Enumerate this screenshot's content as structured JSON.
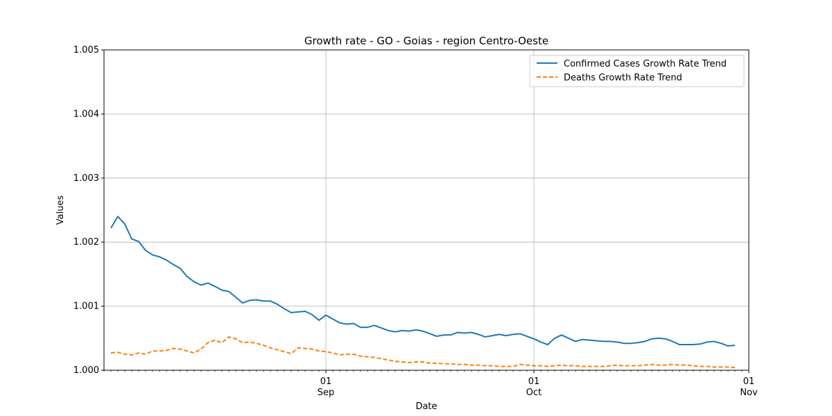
{
  "chart_data": {
    "type": "line",
    "title": "Growth rate - GO - Goias - region Centro-Oeste",
    "xlabel": "Date",
    "ylabel": "Values",
    "xlim": [
      "2020-07-31",
      "2020-11-01"
    ],
    "ylim": [
      1.0,
      1.005
    ],
    "y_ticks": [
      "1.000",
      "1.001",
      "1.002",
      "1.003",
      "1.004",
      "1.005"
    ],
    "x_major_ticks": [
      {
        "date": "2020-09-01",
        "day": "01",
        "month": "Sep"
      },
      {
        "date": "2020-10-01",
        "day": "01",
        "month": "Oct"
      },
      {
        "date": "2020-11-01",
        "day": "01",
        "month": "Nov"
      }
    ],
    "grid": true,
    "legend_position": "top-right",
    "x_start": "2020-08-01",
    "series": [
      {
        "name": "Confirmed Cases Growth Rate Trend",
        "color": "#1f77b4",
        "style": "solid",
        "values": [
          1.00222,
          1.0024,
          1.00228,
          1.00205,
          1.00201,
          1.00187,
          1.0018,
          1.00177,
          1.00172,
          1.00165,
          1.00159,
          1.00146,
          1.00138,
          1.00133,
          1.00136,
          1.00131,
          1.00125,
          1.00123,
          1.00114,
          1.00105,
          1.00109,
          1.0011,
          1.00108,
          1.00108,
          1.00103,
          1.00096,
          1.0009,
          1.00091,
          1.00092,
          1.00087,
          1.00078,
          1.00086,
          1.0008,
          1.00074,
          1.00072,
          1.00073,
          1.00067,
          1.00067,
          1.0007,
          1.00066,
          1.00062,
          1.0006,
          1.00062,
          1.00061,
          1.00063,
          1.00061,
          1.00057,
          1.00053,
          1.00055,
          1.00055,
          1.00059,
          1.00058,
          1.00059,
          1.00056,
          1.00052,
          1.00054,
          1.00056,
          1.00054,
          1.00056,
          1.00057,
          1.00053,
          1.00049,
          1.00044,
          1.0004,
          1.0005,
          1.00055,
          1.0005,
          1.00045,
          1.00048,
          1.00047,
          1.00046,
          1.00045,
          1.00045,
          1.00044,
          1.00042,
          1.00042,
          1.00043,
          1.00045,
          1.00049,
          1.0005,
          1.00049,
          1.00045,
          1.0004,
          1.0004,
          1.0004,
          1.00041,
          1.00044,
          1.00045,
          1.00042,
          1.00038,
          1.00039
        ]
      },
      {
        "name": "Deaths Growth Rate Trend",
        "color": "#ff7f0e",
        "style": "dashed",
        "values": [
          1.00027,
          1.00028,
          1.00025,
          1.00024,
          1.00027,
          1.00025,
          1.0003,
          1.0003,
          1.00031,
          1.00034,
          1.00033,
          1.0003,
          1.00027,
          1.00033,
          1.00043,
          1.00047,
          1.00043,
          1.00052,
          1.00049,
          1.00043,
          1.00044,
          1.00042,
          1.00039,
          1.00035,
          1.00032,
          1.00029,
          1.00026,
          1.00035,
          1.00034,
          1.00033,
          1.0003,
          1.00029,
          1.00027,
          1.00024,
          1.00025,
          1.00025,
          1.00022,
          1.00021,
          1.0002,
          1.00018,
          1.00016,
          1.00014,
          1.00013,
          1.00012,
          1.00013,
          1.00013,
          1.00011,
          1.00011,
          1.0001,
          1.0001,
          1.00009,
          1.00009,
          1.00008,
          1.00008,
          1.00007,
          1.00007,
          1.00006,
          1.00006,
          1.00006,
          1.00009,
          1.00008,
          1.00007,
          1.00007,
          1.00006,
          1.00007,
          1.00008,
          1.00007,
          1.00007,
          1.00006,
          1.00006,
          1.00006,
          1.00006,
          1.00007,
          1.00008,
          1.00007,
          1.00007,
          1.00007,
          1.00008,
          1.00009,
          1.00008,
          1.00008,
          1.00009,
          1.00008,
          1.00008,
          1.00007,
          1.00006,
          1.00006,
          1.00005,
          1.00005,
          1.00005,
          1.00004
        ]
      }
    ]
  }
}
